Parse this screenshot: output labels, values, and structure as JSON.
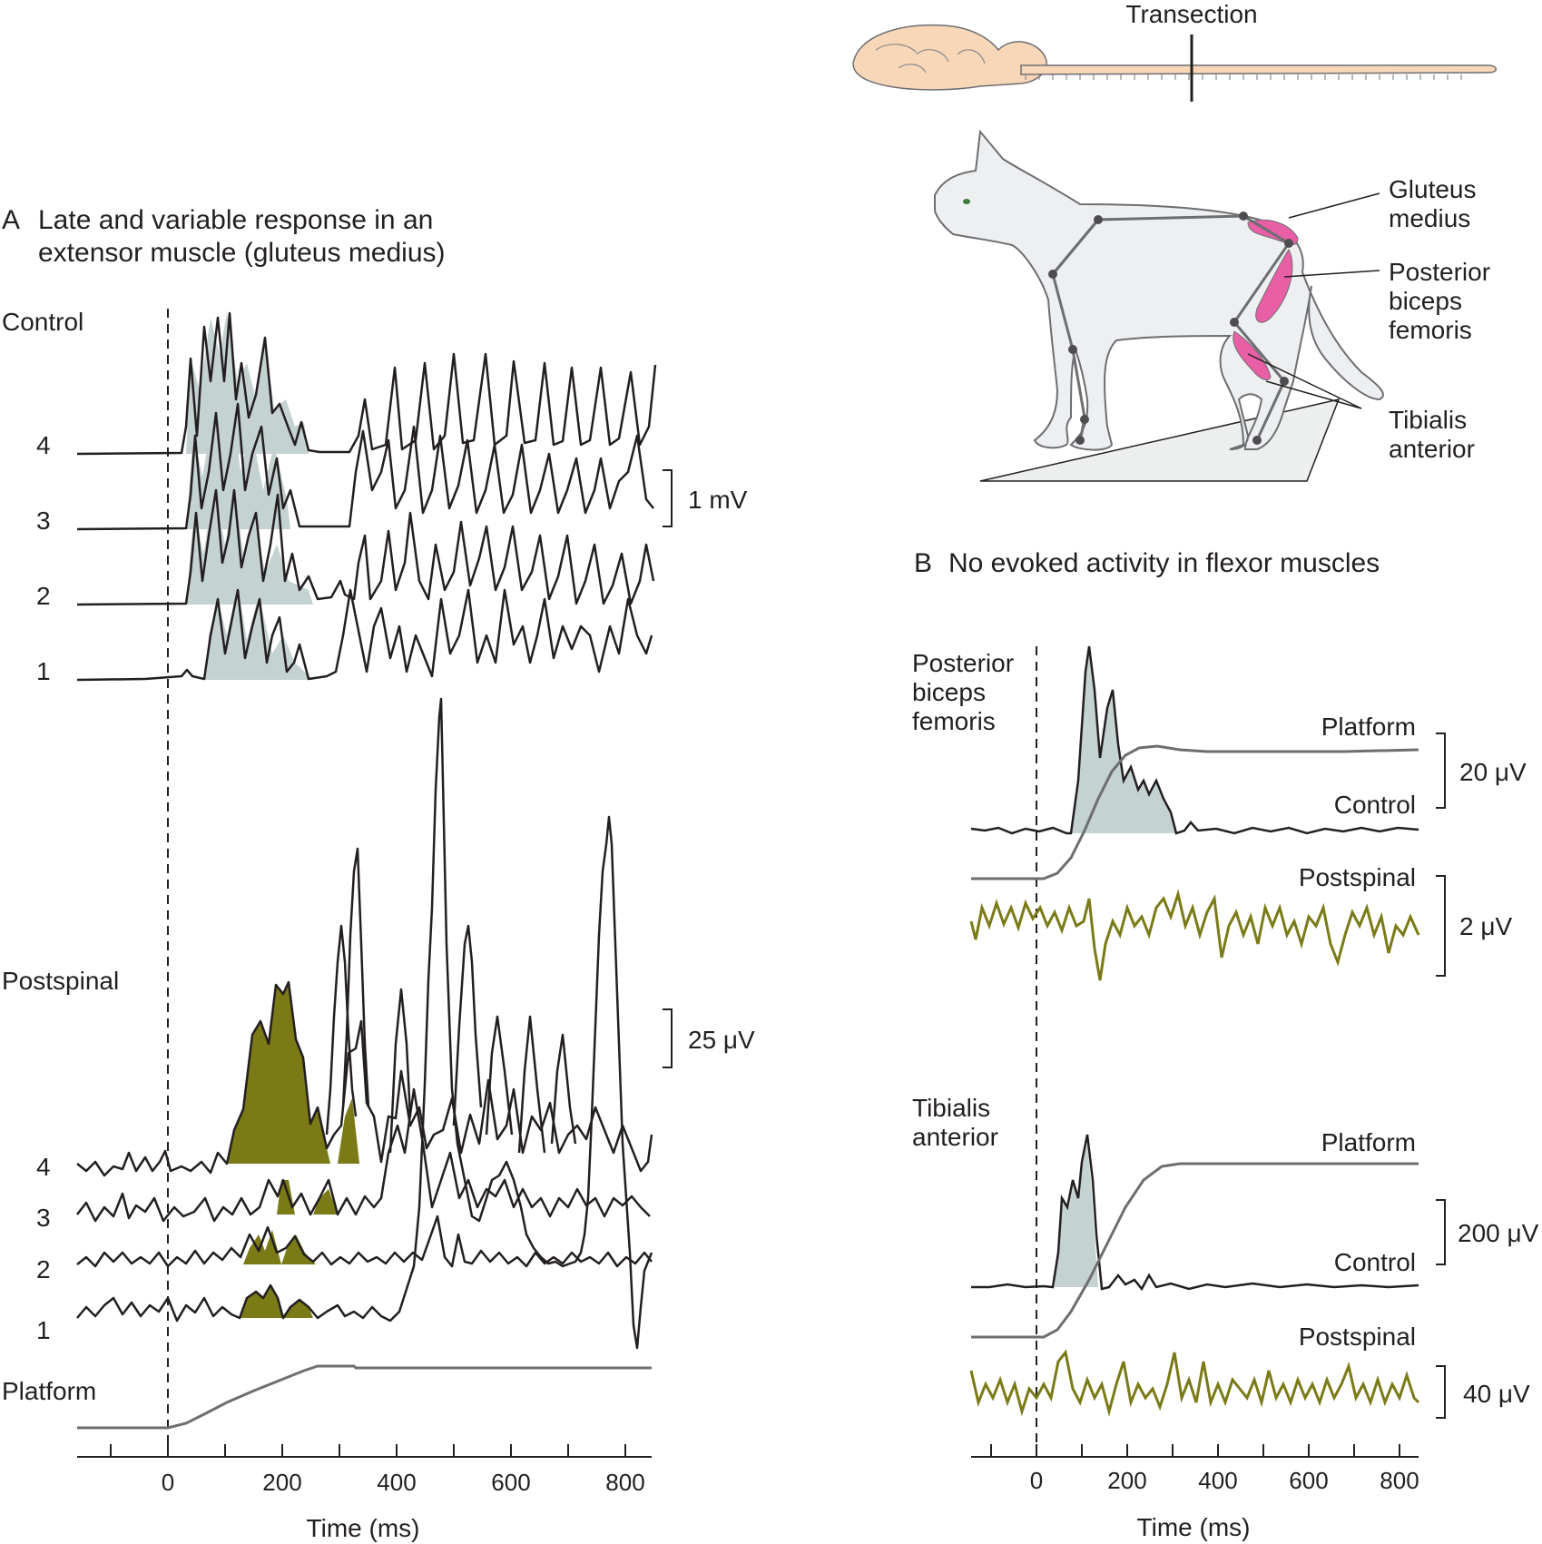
{
  "panel_a": {
    "letter": "A",
    "title_line1": "Late and variable response in an",
    "title_line2": "extensor muscle (gluteus medius)",
    "control_label": "Control",
    "postspinal_label": "Postspinal",
    "platform_label": "Platform",
    "trial_labels": [
      "4",
      "3",
      "2",
      "1"
    ],
    "control_scale": "1 mV",
    "postspinal_scale": "25 μV",
    "axis_ticks": [
      "0",
      "200",
      "400",
      "600",
      "800"
    ],
    "axis_label": "Time (ms)"
  },
  "panel_b": {
    "letter": "B",
    "title": "No evoked activity in flexor muscles",
    "muscle1_line1": "Posterior",
    "muscle1_line2": "biceps",
    "muscle1_line3": "femoris",
    "muscle2_line1": "Tibialis",
    "muscle2_line2": "anterior",
    "platform_label": "Platform",
    "control_label": "Control",
    "postspinal_label": "Postspinal",
    "scale1": "20 μV",
    "scale2": "2 μV",
    "scale3": "200 μV",
    "scale4": "40 μV",
    "axis_ticks": [
      "0",
      "200",
      "400",
      "600",
      "800"
    ],
    "axis_label": "Time (ms)"
  },
  "illustration": {
    "transection_label": "Transection",
    "muscle_labels": {
      "gluteus_line1": "Gluteus",
      "gluteus_line2": "medius",
      "pbf_line1": "Posterior",
      "pbf_line2": "biceps",
      "pbf_line3": "femoris",
      "ta_line1": "Tibialis",
      "ta_line2": "anterior"
    }
  },
  "colors": {
    "control_fill": "#c5d2d2",
    "postspinal_trace": "#7a7a17",
    "platform_trace": "#6d6e71",
    "muscle_pink": "#e85fa6",
    "trace": "#231f20"
  }
}
